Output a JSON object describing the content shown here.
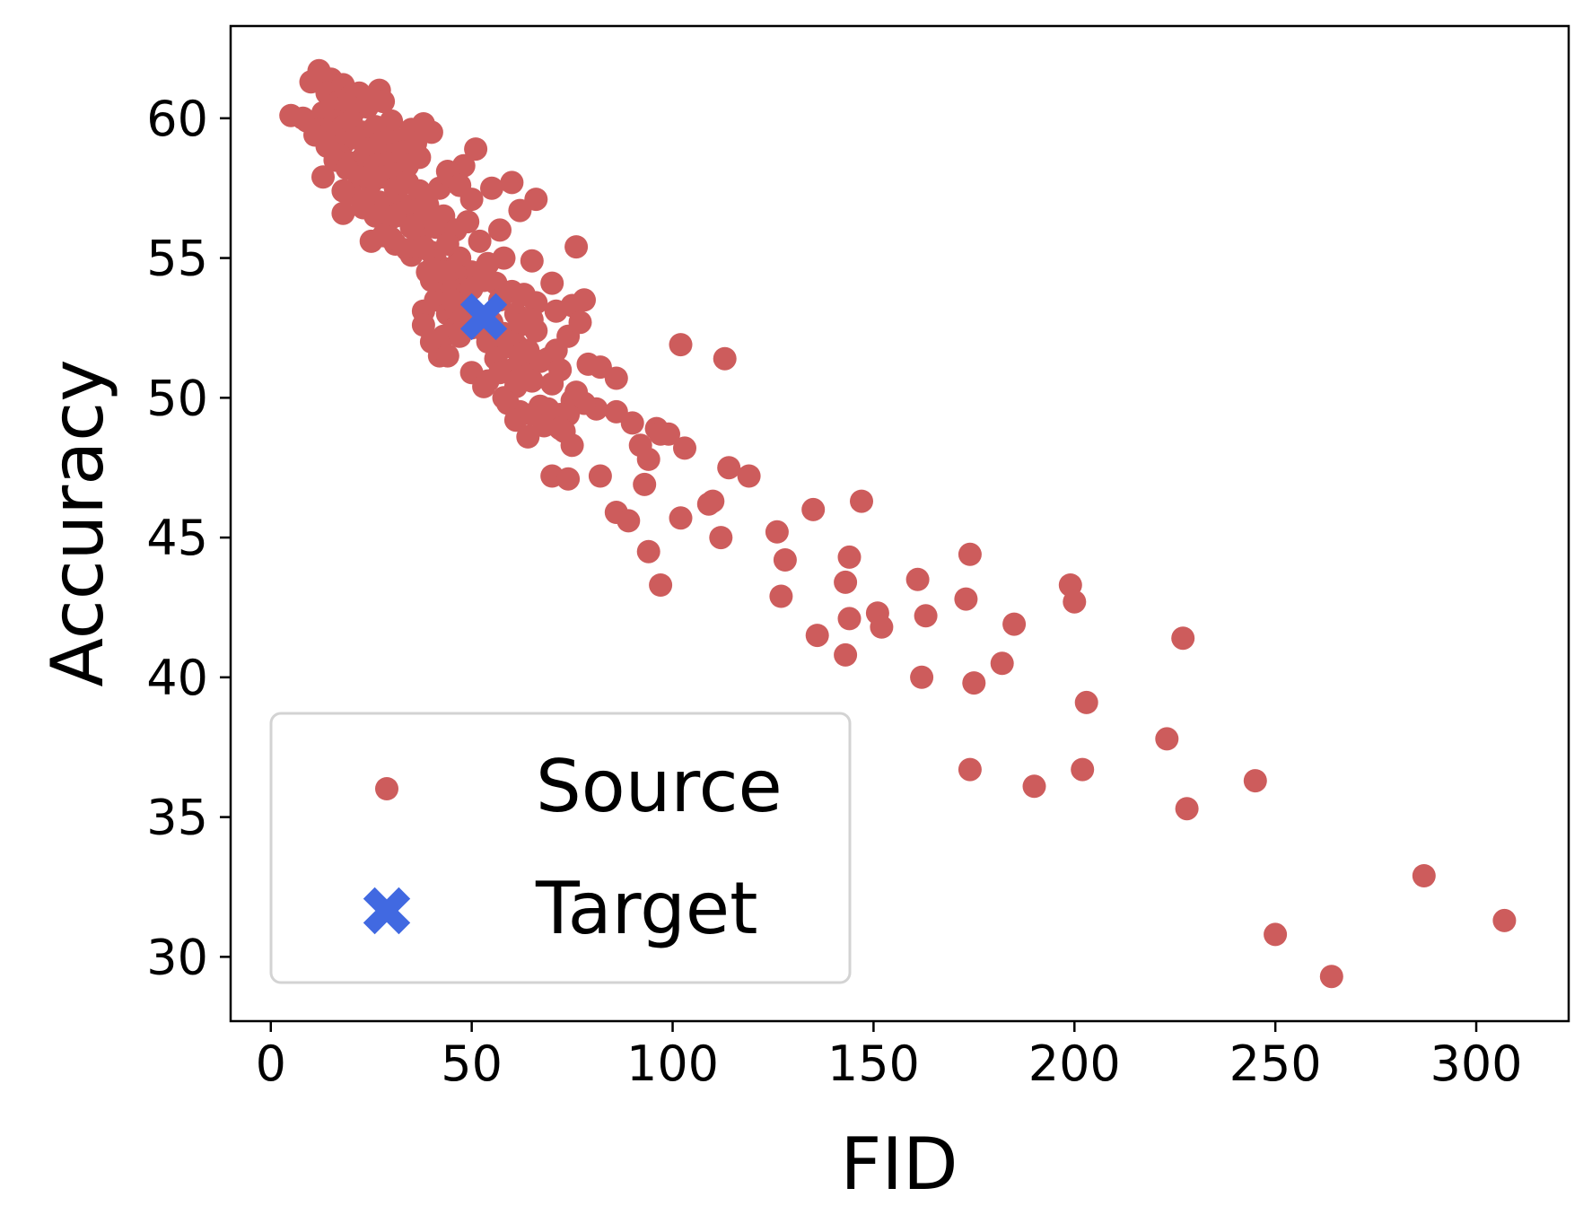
{
  "chart_data": {
    "type": "scatter",
    "title": "",
    "xlabel": "FID",
    "ylabel": "Accuracy",
    "xlim": [
      -10,
      323
    ],
    "ylim": [
      27.7,
      63.3
    ],
    "xticks": [
      0,
      50,
      100,
      150,
      200,
      250,
      300
    ],
    "yticks": [
      30,
      35,
      40,
      45,
      50,
      55,
      60
    ],
    "grid": false,
    "legend_position": "lower-left",
    "series": [
      {
        "name": "Source",
        "marker": "circle",
        "color": "#cd5c5c",
        "x": [
          12,
          15,
          18,
          20,
          22,
          25,
          27,
          10,
          14,
          17,
          19,
          21,
          24,
          28,
          30,
          5,
          8,
          11,
          13,
          16,
          18,
          20,
          23,
          26,
          29,
          32,
          35,
          9,
          12,
          15,
          18,
          21,
          24,
          27,
          30,
          33,
          36,
          38,
          11,
          14,
          17,
          20,
          23,
          26,
          29,
          31,
          34,
          37,
          40,
          16,
          19,
          22,
          25,
          28,
          31,
          34,
          37,
          13,
          20,
          24,
          27,
          30,
          33,
          36,
          39,
          42,
          45,
          48,
          51,
          44,
          47,
          50,
          18,
          23,
          26,
          29,
          32,
          35,
          38,
          41,
          43,
          46,
          49,
          55,
          60,
          25,
          28,
          31,
          34,
          37,
          40,
          44,
          47,
          52,
          57,
          62,
          66,
          18,
          23,
          30,
          35,
          38,
          41,
          44,
          47,
          50,
          54,
          58,
          65,
          31,
          36,
          40,
          43,
          46,
          48,
          53,
          56,
          60,
          70,
          76,
          35,
          39,
          42,
          45,
          48,
          50,
          57,
          63,
          66,
          38,
          41,
          44,
          49,
          52,
          55,
          61,
          65,
          71,
          75,
          78,
          40,
          43,
          46,
          51,
          53,
          58,
          62,
          66,
          74,
          77,
          38,
          43,
          45,
          47,
          54,
          58,
          61,
          64,
          69,
          71,
          40,
          42,
          48,
          52,
          56,
          59,
          62,
          67,
          72,
          79,
          86,
          44,
          47,
          50,
          56,
          60,
          64,
          82,
          50,
          54,
          57,
          61,
          64,
          70,
          76,
          53,
          58,
          61,
          65,
          75,
          81,
          59,
          62,
          67,
          72,
          78,
          86,
          61,
          65,
          69,
          74,
          90,
          96,
          64,
          68,
          73,
          92,
          97,
          99,
          75,
          103,
          72,
          94,
          114,
          70,
          74,
          82,
          93,
          110,
          119,
          109,
          135,
          147,
          86,
          89,
          102,
          126,
          112,
          94,
          128,
          144,
          97,
          161,
          174,
          143,
          199,
          127,
          151,
          173,
          200,
          144,
          163,
          152,
          136,
          185,
          227,
          143,
          182,
          162,
          175,
          203,
          223,
          174,
          202,
          190,
          245,
          228,
          287,
          250,
          307,
          264,
          102,
          113
        ],
        "y": [
          61.7,
          61.4,
          61.2,
          60.8,
          60.9,
          60.7,
          61.0,
          61.3,
          60.9,
          60.6,
          60.5,
          60.3,
          60.4,
          60.6,
          59.9,
          60.1,
          60.0,
          59.8,
          60.2,
          59.9,
          59.7,
          59.9,
          59.5,
          59.7,
          59.3,
          59.2,
          59.6,
          59.9,
          59.6,
          59.4,
          59.1,
          59.3,
          58.9,
          59.1,
          58.7,
          58.8,
          59.1,
          59.8,
          59.4,
          59.0,
          58.7,
          58.4,
          58.6,
          58.3,
          58.4,
          58.0,
          58.3,
          58.6,
          59.5,
          58.5,
          58.2,
          57.9,
          57.7,
          57.9,
          57.5,
          57.7,
          57.4,
          57.9,
          57.3,
          57.1,
          57.0,
          56.8,
          56.9,
          56.7,
          56.9,
          57.5,
          57.9,
          58.3,
          58.9,
          58.1,
          57.6,
          57.1,
          56.6,
          56.9,
          56.5,
          56.3,
          56.6,
          56.2,
          56.4,
          56.1,
          56.5,
          56.0,
          56.3,
          57.5,
          57.7,
          55.6,
          55.8,
          55.5,
          55.3,
          55.7,
          55.2,
          55.5,
          55.0,
          55.6,
          56.0,
          56.7,
          57.1,
          57.4,
          56.8,
          55.7,
          55.1,
          55.4,
          54.9,
          54.6,
          54.8,
          54.5,
          54.8,
          55.0,
          54.9,
          56.5,
          55.4,
          54.6,
          54.1,
          54.4,
          53.9,
          54.2,
          54.1,
          53.8,
          54.1,
          55.4,
          56.1,
          54.5,
          54.3,
          53.8,
          53.6,
          53.9,
          53.5,
          53.7,
          53.4,
          53.1,
          53.5,
          53.0,
          53.3,
          52.9,
          52.7,
          53.0,
          52.8,
          53.1,
          53.3,
          53.5,
          54.2,
          54.5,
          52.5,
          52.8,
          52.6,
          52.3,
          52.6,
          52.4,
          52.2,
          52.7,
          52.6,
          52.2,
          53.5,
          52.2,
          52.0,
          51.8,
          51.9,
          51.6,
          51.4,
          51.7,
          52.0,
          51.5,
          52.9,
          52.5,
          52.2,
          52.0,
          51.5,
          51.3,
          51.0,
          51.2,
          50.7,
          51.5,
          52.3,
          52.5,
          51.4,
          51.0,
          51.7,
          51.1,
          50.9,
          50.6,
          50.9,
          50.4,
          50.8,
          50.5,
          50.2,
          50.4,
          50.0,
          50.6,
          50.6,
          49.9,
          49.6,
          49.8,
          49.5,
          49.7,
          49.4,
          49.8,
          49.5,
          49.2,
          49.4,
          49.6,
          49.4,
          49.1,
          48.9,
          48.6,
          49.0,
          48.8,
          48.3,
          48.7,
          48.7,
          48.3,
          48.2,
          48.9,
          47.8,
          47.5,
          47.2,
          47.1,
          47.2,
          46.9,
          46.3,
          47.2,
          46.2,
          46.0,
          46.3,
          45.9,
          45.6,
          45.7,
          45.2,
          45.0,
          44.5,
          44.2,
          44.3,
          43.3,
          43.5,
          44.4,
          43.4,
          43.3,
          42.9,
          42.3,
          42.8,
          42.7,
          42.1,
          42.2,
          41.8,
          41.5,
          41.9,
          41.4,
          40.8,
          40.5,
          40.0,
          39.8,
          39.1,
          37.8,
          36.7,
          36.7,
          36.1,
          36.3,
          35.3,
          32.9,
          30.8,
          31.3,
          29.3,
          51.9,
          51.4
        ]
      },
      {
        "name": "Target",
        "marker": "x-filled",
        "color": "#4169e1",
        "x": [
          53
        ],
        "y": [
          52.9
        ]
      }
    ]
  }
}
